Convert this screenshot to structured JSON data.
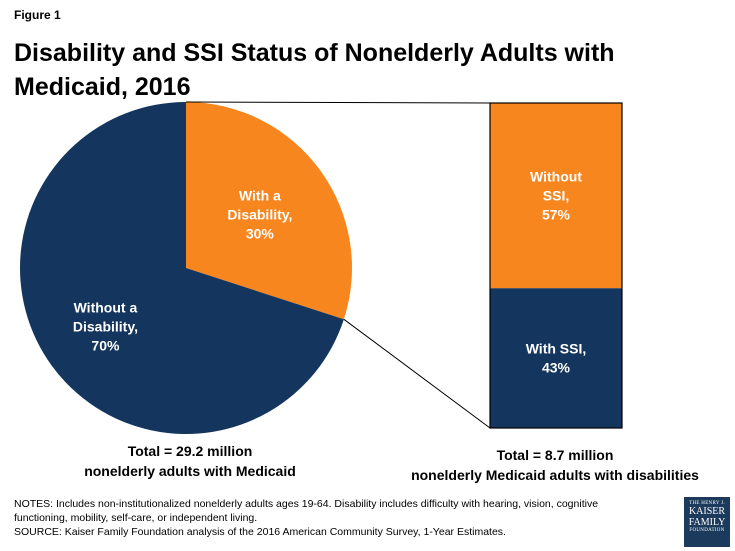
{
  "figure_label": "Figure 1",
  "title_line1": "Disability and SSI Status of Nonelderly Adults with",
  "title_line2": "Medicaid, 2016",
  "left_total_line1": "Total = 29.2 million",
  "left_total_line2": "nonelderly adults with Medicaid",
  "right_total_line1": "Total = 8.7 million",
  "right_total_line2": "nonelderly Medicaid adults with disabilities",
  "notes": [
    "NOTES: Includes non-institutionalized nonelderly adults ages 19-64. Disability includes difficulty with hearing, vision, cognitive",
    "functioning, mobility, self-care, or independent living.",
    "SOURCE: Kaiser Family Foundation analysis of the 2016 American Community Survey, 1-Year Estimates."
  ],
  "logo": {
    "line1": "THE HENRY J.",
    "line2": "KAISER",
    "line3": "FAMILY",
    "line4": "FOUNDATION"
  },
  "colors": {
    "orange": "#f7861f",
    "navy": "#14365e",
    "white": "#ffffff"
  },
  "chart_data": [
    {
      "type": "pie",
      "title": "Total = 29.2 million nonelderly adults with Medicaid",
      "slices": [
        {
          "label_lines": [
            "With a",
            "Disability,",
            "30%"
          ],
          "value": 30,
          "color": "#f7861f"
        },
        {
          "label_lines": [
            "Without a",
            "Disability,",
            "70%"
          ],
          "value": 70,
          "color": "#14365e"
        }
      ]
    },
    {
      "type": "bar",
      "stacked": true,
      "title": "Total = 8.7 million nonelderly Medicaid adults with disabilities",
      "segments": [
        {
          "label_lines": [
            "Without",
            "SSI,",
            "57%"
          ],
          "value": 57,
          "color": "#f7861f"
        },
        {
          "label_lines": [
            "With SSI,",
            "43%"
          ],
          "value": 43,
          "color": "#14365e"
        }
      ]
    }
  ]
}
